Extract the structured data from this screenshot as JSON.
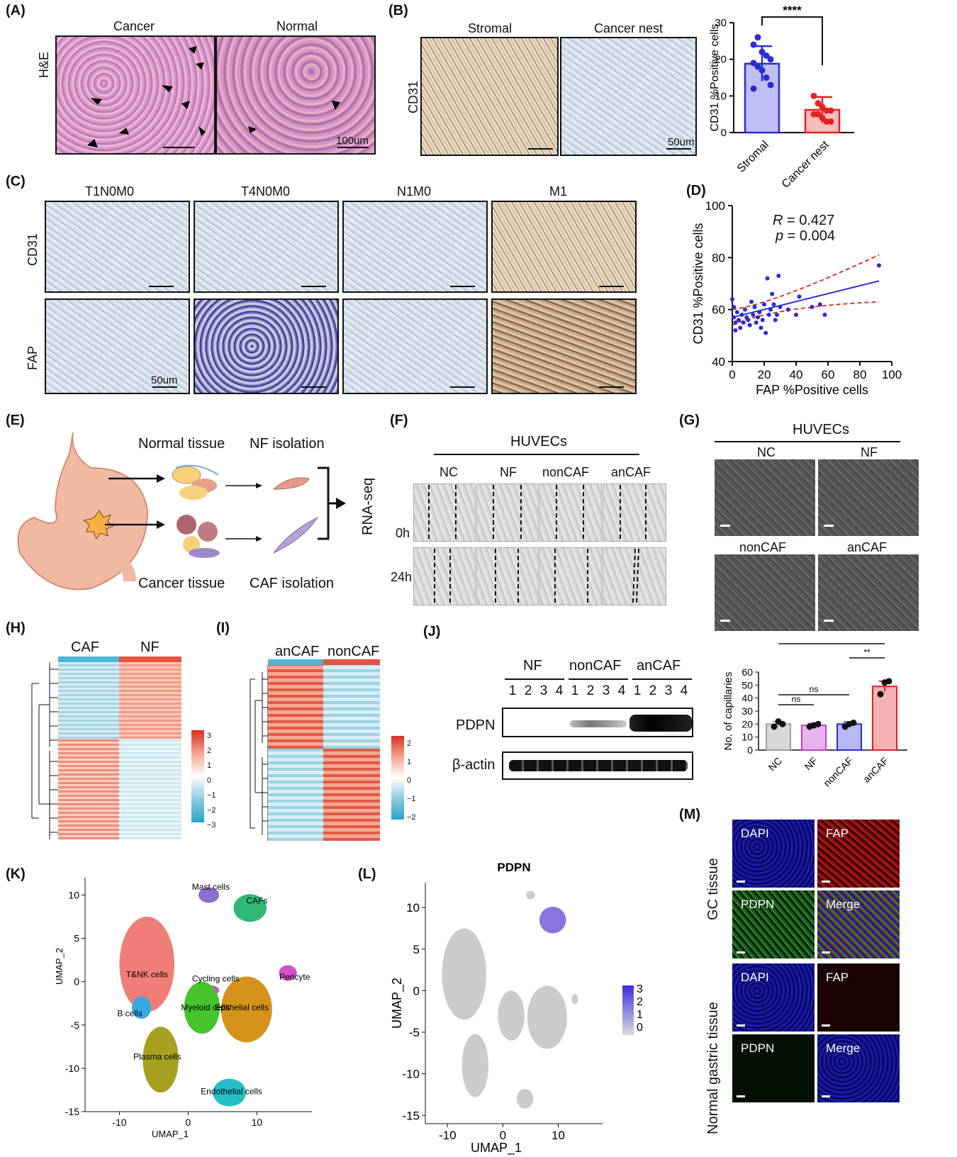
{
  "panels": {
    "A": {
      "label": "(A)",
      "cols": [
        "Cancer",
        "Normal"
      ],
      "row": "H&E",
      "scale": "100um"
    },
    "B": {
      "label": "(B)",
      "cols": [
        "Stromal",
        "Cancer nest"
      ],
      "row": "CD31",
      "scale": "50um"
    },
    "C": {
      "label": "(C)",
      "cols": [
        "T1N0M0",
        "T4N0M0",
        "N1M0",
        "M1"
      ],
      "rows": [
        "CD31",
        "FAP"
      ],
      "scale": "50um"
    },
    "D": {
      "label": "(D)",
      "r_label": "R",
      "r_value": " = 0.427",
      "p_label": "p",
      "p_value": " = 0.004"
    },
    "E": {
      "label": "(E)",
      "normal_tissue": "Normal tissue",
      "nf_isolation": "NF isolation",
      "cancer_tissue": "Cancer tissue",
      "caf_isolation": "CAF isolation",
      "rnaseq": "RNA-seq"
    },
    "F": {
      "label": "(F)",
      "title": "HUVECs",
      "cols": [
        "NC",
        "NF",
        "nonCAF",
        "anCAF"
      ],
      "rows": [
        "0h",
        "24h"
      ]
    },
    "G": {
      "label": "(G)",
      "title": "HUVECs",
      "labels": [
        "NC",
        "NF",
        "nonCAF",
        "anCAF"
      ]
    },
    "H": {
      "label": "(H)",
      "groups": [
        "CAF",
        "NF"
      ],
      "scale_ticks": [
        "3",
        "2",
        "1",
        "0",
        "−1",
        "−2",
        "−3"
      ]
    },
    "I": {
      "label": "(I)",
      "groups": [
        "anCAF",
        "nonCAF"
      ],
      "scale_ticks": [
        "2",
        "1",
        "0",
        "−1",
        "−2"
      ]
    },
    "J": {
      "label": "(J)",
      "groups": [
        "NF",
        "nonCAF",
        "anCAF"
      ],
      "lanes": [
        "1",
        "2",
        "3",
        "4",
        "1",
        "2",
        "3",
        "4",
        "1",
        "2",
        "3",
        "4"
      ],
      "rows": [
        "PDPN",
        "β-actin"
      ]
    },
    "K": {
      "label": "(K)",
      "xlabel": "UMAP_1",
      "ylabel": "UMAP_2",
      "clusters": [
        "Mast cells",
        "CAFs",
        "T&NK cells",
        "Cycling cells",
        "Pericyte",
        "B cells",
        "Myeloid cells",
        "Epithelial cells",
        "Plasma cells",
        "Endothelial cells"
      ]
    },
    "L": {
      "label": "(L)",
      "title": "PDPN",
      "xlabel": "UMAP_1",
      "ylabel": "UMAP_2",
      "legend_ticks": [
        "3",
        "2",
        "1",
        "0"
      ]
    },
    "M": {
      "label": "(M)",
      "rows": [
        "GC tissue",
        "Normal gastric tissue"
      ],
      "channels": [
        "DAPI",
        "FAP",
        "PDPN",
        "Merge"
      ]
    }
  },
  "chart_data": [
    {
      "id": "B-bar",
      "type": "bar",
      "categories": [
        "Stromal",
        "Cancer nest"
      ],
      "values": [
        18.8,
        6.2
      ],
      "errors": [
        4.8,
        3.5
      ],
      "points": [
        [
          24,
          26,
          22,
          21,
          20,
          19,
          18,
          17,
          15,
          13,
          12
        ],
        [
          10,
          8,
          7,
          6,
          6,
          5,
          5,
          4,
          3,
          3
        ]
      ],
      "colors": [
        "#2b2bd6",
        "#e32222"
      ],
      "ylabel": "CD31 %Positive cells",
      "ylim": [
        0,
        30
      ],
      "yticks": [
        0,
        10,
        20,
        30
      ],
      "significance": "****"
    },
    {
      "id": "D-scatter",
      "type": "scatter",
      "xlabel": "FAP %Positive cells",
      "ylabel": "CD31 %Positive cells",
      "xlim": [
        0,
        100
      ],
      "ylim": [
        40,
        100
      ],
      "xticks": [
        0,
        20,
        40,
        60,
        80,
        100
      ],
      "yticks": [
        40,
        60,
        80,
        100
      ],
      "points": [
        [
          0,
          64
        ],
        [
          1,
          61
        ],
        [
          1,
          57
        ],
        [
          2,
          55
        ],
        [
          2,
          52
        ],
        [
          3,
          59
        ],
        [
          4,
          56
        ],
        [
          5,
          53
        ],
        [
          6,
          58
        ],
        [
          7,
          55
        ],
        [
          8,
          60
        ],
        [
          9,
          57
        ],
        [
          10,
          56
        ],
        [
          11,
          54
        ],
        [
          12,
          63
        ],
        [
          13,
          58
        ],
        [
          14,
          61
        ],
        [
          15,
          55
        ],
        [
          16,
          57
        ],
        [
          17,
          59
        ],
        [
          18,
          53
        ],
        [
          19,
          56
        ],
        [
          20,
          62
        ],
        [
          21,
          51
        ],
        [
          22,
          72
        ],
        [
          23,
          58
        ],
        [
          24,
          60
        ],
        [
          25,
          66
        ],
        [
          26,
          62
        ],
        [
          27,
          56
        ],
        [
          28,
          58
        ],
        [
          29,
          73
        ],
        [
          30,
          61
        ],
        [
          35,
          60
        ],
        [
          40,
          58
        ],
        [
          42,
          65
        ],
        [
          50,
          61
        ],
        [
          55,
          62
        ],
        [
          58,
          58
        ],
        [
          92,
          77
        ]
      ],
      "fit": {
        "x0": 0,
        "y0": 57,
        "x1": 92,
        "y1": 71
      },
      "annotation": {
        "R": 0.427,
        "p": 0.004
      }
    },
    {
      "id": "G-bar",
      "type": "bar",
      "categories": [
        "NC",
        "NF",
        "nonCAF",
        "anCAF"
      ],
      "values": [
        20,
        19,
        20,
        49
      ],
      "errors": [
        2,
        1.5,
        1.5,
        4
      ],
      "points": [
        [
          18,
          22,
          20
        ],
        [
          18,
          19,
          20
        ],
        [
          18,
          20,
          21
        ],
        [
          43,
          52,
          53
        ]
      ],
      "colors": [
        "#a0a0a0",
        "#c040d0",
        "#2b2bd6",
        "#e32222"
      ],
      "fills": [
        "#d8d8d8",
        "#e7b4f0",
        "#b8b8f4",
        "#f7b3b3"
      ],
      "ylabel": "No. of capillaries",
      "ylim": [
        0,
        60
      ],
      "yticks": [
        0,
        10,
        20,
        30,
        40,
        50,
        60
      ],
      "comparisons": [
        {
          "from": 0,
          "to": 3,
          "label": "**"
        },
        {
          "from": 2,
          "to": 3,
          "label": "**"
        },
        {
          "from": 0,
          "to": 2,
          "label": "ns"
        },
        {
          "from": 0,
          "to": 1,
          "label": "ns"
        }
      ]
    },
    {
      "id": "K-umap",
      "type": "scatter",
      "xlabel": "UMAP_1",
      "ylabel": "UMAP_2",
      "xlim": [
        -15,
        18
      ],
      "ylim": [
        -15,
        12
      ],
      "xticks": [
        -10,
        0,
        10
      ],
      "yticks": [
        -15,
        -10,
        -5,
        0,
        5,
        10
      ]
    },
    {
      "id": "L-umap",
      "type": "scatter",
      "title": "PDPN",
      "xlabel": "UMAP_1",
      "ylabel": "UMAP_2",
      "xlim": [
        -14,
        18
      ],
      "ylim": [
        -16,
        13
      ],
      "xticks": [
        -10,
        0,
        10
      ],
      "yticks": [
        -15,
        -10,
        -5,
        0,
        5,
        10
      ]
    }
  ]
}
